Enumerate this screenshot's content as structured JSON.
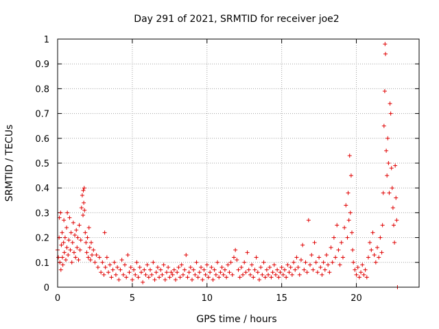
{
  "chart_data": {
    "type": "scatter",
    "title": "Day 291 of 2021, SRMTID for receiver joe2",
    "xlabel": "GPS time / hours",
    "ylabel": "SRMTID / TECUs",
    "xlim": [
      0,
      24.2
    ],
    "ylim": [
      0,
      1
    ],
    "xticks": [
      0,
      5,
      10,
      15,
      20
    ],
    "yticks": [
      0,
      0.1,
      0.2,
      0.3,
      0.4,
      0.5,
      0.6,
      0.7,
      0.8,
      0.9,
      1
    ],
    "xtick_labels": [
      "0",
      "5",
      "10",
      "15",
      "20"
    ],
    "ytick_labels": [
      "0",
      "0.1",
      "0.2",
      "0.3",
      "0.4",
      "0.5",
      "0.6",
      "0.7",
      "0.8",
      "0.9",
      "1"
    ],
    "grid": true,
    "marker": "+",
    "color": "#e00000",
    "series": [
      {
        "name": "SRMTID",
        "points": [
          [
            0.0,
            0.15
          ],
          [
            0.05,
            0.12
          ],
          [
            0.1,
            0.2
          ],
          [
            0.12,
            0.28
          ],
          [
            0.15,
            0.1
          ],
          [
            0.2,
            0.3
          ],
          [
            0.22,
            0.07
          ],
          [
            0.25,
            0.17
          ],
          [
            0.3,
            0.22
          ],
          [
            0.32,
            0.12
          ],
          [
            0.35,
            0.09
          ],
          [
            0.4,
            0.18
          ],
          [
            0.42,
            0.27
          ],
          [
            0.45,
            0.14
          ],
          [
            0.5,
            0.2
          ],
          [
            0.55,
            0.11
          ],
          [
            0.6,
            0.24
          ],
          [
            0.62,
            0.16
          ],
          [
            0.65,
            0.3
          ],
          [
            0.7,
            0.13
          ],
          [
            0.75,
            0.19
          ],
          [
            0.8,
            0.28
          ],
          [
            0.85,
            0.15
          ],
          [
            0.9,
            0.22
          ],
          [
            0.95,
            0.1
          ],
          [
            1.0,
            0.18
          ],
          [
            1.05,
            0.26
          ],
          [
            1.1,
            0.14
          ],
          [
            1.15,
            0.21
          ],
          [
            1.2,
            0.12
          ],
          [
            1.25,
            0.23
          ],
          [
            1.3,
            0.16
          ],
          [
            1.35,
            0.2
          ],
          [
            1.4,
            0.11
          ],
          [
            1.45,
            0.25
          ],
          [
            1.5,
            0.15
          ],
          [
            1.55,
            0.19
          ],
          [
            1.6,
            0.32
          ],
          [
            1.65,
            0.37
          ],
          [
            1.7,
            0.29
          ],
          [
            1.72,
            0.39
          ],
          [
            1.75,
            0.34
          ],
          [
            1.78,
            0.4
          ],
          [
            1.8,
            0.31
          ],
          [
            1.85,
            0.22
          ],
          [
            1.9,
            0.18
          ],
          [
            1.95,
            0.14
          ],
          [
            2.0,
            0.2
          ],
          [
            2.05,
            0.12
          ],
          [
            2.1,
            0.24
          ],
          [
            2.15,
            0.16
          ],
          [
            2.2,
            0.11
          ],
          [
            2.25,
            0.18
          ],
          [
            2.3,
            0.13
          ],
          [
            2.4,
            0.15
          ],
          [
            2.5,
            0.1
          ],
          [
            2.6,
            0.13
          ],
          [
            2.7,
            0.08
          ],
          [
            2.8,
            0.12
          ],
          [
            2.9,
            0.06
          ],
          [
            3.0,
            0.1
          ],
          [
            3.1,
            0.05
          ],
          [
            3.15,
            0.22
          ],
          [
            3.2,
            0.08
          ],
          [
            3.3,
            0.12
          ],
          [
            3.4,
            0.06
          ],
          [
            3.5,
            0.09
          ],
          [
            3.6,
            0.04
          ],
          [
            3.7,
            0.07
          ],
          [
            3.8,
            0.1
          ],
          [
            3.9,
            0.05
          ],
          [
            4.0,
            0.08
          ],
          [
            4.1,
            0.03
          ],
          [
            4.2,
            0.07
          ],
          [
            4.3,
            0.11
          ],
          [
            4.4,
            0.05
          ],
          [
            4.5,
            0.09
          ],
          [
            4.6,
            0.04
          ],
          [
            4.7,
            0.13
          ],
          [
            4.8,
            0.06
          ],
          [
            4.9,
            0.08
          ],
          [
            5.0,
            0.03
          ],
          [
            5.1,
            0.07
          ],
          [
            5.2,
            0.05
          ],
          [
            5.3,
            0.1
          ],
          [
            5.4,
            0.04
          ],
          [
            5.5,
            0.08
          ],
          [
            5.6,
            0.06
          ],
          [
            5.7,
            0.02
          ],
          [
            5.8,
            0.07
          ],
          [
            5.9,
            0.05
          ],
          [
            6.0,
            0.09
          ],
          [
            6.1,
            0.04
          ],
          [
            6.2,
            0.07
          ],
          [
            6.3,
            0.05
          ],
          [
            6.4,
            0.1
          ],
          [
            6.5,
            0.03
          ],
          [
            6.6,
            0.06
          ],
          [
            6.7,
            0.08
          ],
          [
            6.8,
            0.04
          ],
          [
            6.9,
            0.07
          ],
          [
            7.0,
            0.05
          ],
          [
            7.1,
            0.09
          ],
          [
            7.2,
            0.03
          ],
          [
            7.3,
            0.06
          ],
          [
            7.4,
            0.08
          ],
          [
            7.5,
            0.04
          ],
          [
            7.6,
            0.06
          ],
          [
            7.7,
            0.05
          ],
          [
            7.8,
            0.07
          ],
          [
            7.9,
            0.03
          ],
          [
            8.0,
            0.06
          ],
          [
            8.1,
            0.08
          ],
          [
            8.2,
            0.04
          ],
          [
            8.3,
            0.09
          ],
          [
            8.4,
            0.05
          ],
          [
            8.5,
            0.07
          ],
          [
            8.6,
            0.13
          ],
          [
            8.7,
            0.04
          ],
          [
            8.8,
            0.06
          ],
          [
            8.9,
            0.08
          ],
          [
            9.0,
            0.03
          ],
          [
            9.1,
            0.07
          ],
          [
            9.2,
            0.05
          ],
          [
            9.3,
            0.1
          ],
          [
            9.4,
            0.04
          ],
          [
            9.5,
            0.06
          ],
          [
            9.6,
            0.08
          ],
          [
            9.7,
            0.03
          ],
          [
            9.8,
            0.07
          ],
          [
            9.9,
            0.05
          ],
          [
            10.0,
            0.09
          ],
          [
            10.1,
            0.04
          ],
          [
            10.2,
            0.06
          ],
          [
            10.3,
            0.08
          ],
          [
            10.4,
            0.03
          ],
          [
            10.5,
            0.07
          ],
          [
            10.6,
            0.05
          ],
          [
            10.7,
            0.1
          ],
          [
            10.8,
            0.04
          ],
          [
            10.9,
            0.06
          ],
          [
            11.0,
            0.08
          ],
          [
            11.1,
            0.05
          ],
          [
            11.2,
            0.07
          ],
          [
            11.3,
            0.04
          ],
          [
            11.4,
            0.09
          ],
          [
            11.5,
            0.06
          ],
          [
            11.6,
            0.1
          ],
          [
            11.7,
            0.05
          ],
          [
            11.8,
            0.12
          ],
          [
            11.9,
            0.15
          ],
          [
            12.0,
            0.11
          ],
          [
            12.1,
            0.07
          ],
          [
            12.2,
            0.04
          ],
          [
            12.3,
            0.08
          ],
          [
            12.4,
            0.05
          ],
          [
            12.5,
            0.1
          ],
          [
            12.6,
            0.06
          ],
          [
            12.7,
            0.14
          ],
          [
            12.8,
            0.07
          ],
          [
            12.9,
            0.05
          ],
          [
            13.0,
            0.09
          ],
          [
            13.1,
            0.04
          ],
          [
            13.2,
            0.07
          ],
          [
            13.3,
            0.12
          ],
          [
            13.4,
            0.06
          ],
          [
            13.5,
            0.03
          ],
          [
            13.6,
            0.08
          ],
          [
            13.7,
            0.05
          ],
          [
            13.8,
            0.1
          ],
          [
            13.9,
            0.04
          ],
          [
            14.0,
            0.07
          ],
          [
            14.1,
            0.05
          ],
          [
            14.2,
            0.08
          ],
          [
            14.3,
            0.04
          ],
          [
            14.4,
            0.06
          ],
          [
            14.5,
            0.09
          ],
          [
            14.6,
            0.05
          ],
          [
            14.7,
            0.07
          ],
          [
            14.8,
            0.04
          ],
          [
            14.9,
            0.06
          ],
          [
            15.0,
            0.08
          ],
          [
            15.1,
            0.05
          ],
          [
            15.2,
            0.07
          ],
          [
            15.3,
            0.04
          ],
          [
            15.4,
            0.09
          ],
          [
            15.5,
            0.06
          ],
          [
            15.6,
            0.08
          ],
          [
            15.7,
            0.05
          ],
          [
            15.8,
            0.1
          ],
          [
            15.9,
            0.07
          ],
          [
            16.0,
            0.12
          ],
          [
            16.1,
            0.08
          ],
          [
            16.2,
            0.05
          ],
          [
            16.3,
            0.11
          ],
          [
            16.4,
            0.17
          ],
          [
            16.5,
            0.07
          ],
          [
            16.6,
            0.1
          ],
          [
            16.7,
            0.06
          ],
          [
            16.8,
            0.27
          ],
          [
            16.9,
            0.09
          ],
          [
            17.0,
            0.13
          ],
          [
            17.1,
            0.07
          ],
          [
            17.2,
            0.18
          ],
          [
            17.3,
            0.1
          ],
          [
            17.4,
            0.06
          ],
          [
            17.5,
            0.12
          ],
          [
            17.6,
            0.08
          ],
          [
            17.7,
            0.05
          ],
          [
            17.8,
            0.1
          ],
          [
            17.9,
            0.07
          ],
          [
            18.0,
            0.13
          ],
          [
            18.1,
            0.09
          ],
          [
            18.2,
            0.06
          ],
          [
            18.3,
            0.16
          ],
          [
            18.4,
            0.1
          ],
          [
            18.5,
            0.2
          ],
          [
            18.6,
            0.12
          ],
          [
            18.7,
            0.25
          ],
          [
            18.8,
            0.15
          ],
          [
            18.9,
            0.09
          ],
          [
            19.0,
            0.18
          ],
          [
            19.1,
            0.12
          ],
          [
            19.2,
            0.24
          ],
          [
            19.3,
            0.33
          ],
          [
            19.4,
            0.2
          ],
          [
            19.45,
            0.38
          ],
          [
            19.5,
            0.27
          ],
          [
            19.55,
            0.53
          ],
          [
            19.6,
            0.3
          ],
          [
            19.65,
            0.45
          ],
          [
            19.7,
            0.22
          ],
          [
            19.75,
            0.15
          ],
          [
            19.8,
            0.1
          ],
          [
            19.9,
            0.07
          ],
          [
            20.0,
            0.05
          ],
          [
            20.1,
            0.08
          ],
          [
            20.2,
            0.04
          ],
          [
            20.3,
            0.06
          ],
          [
            20.4,
            0.09
          ],
          [
            20.5,
            0.05
          ],
          [
            20.6,
            0.07
          ],
          [
            20.7,
            0.04
          ],
          [
            20.8,
            0.12
          ],
          [
            20.9,
            0.18
          ],
          [
            21.0,
            0.15
          ],
          [
            21.1,
            0.22
          ],
          [
            21.2,
            0.13
          ],
          [
            21.3,
            0.1
          ],
          [
            21.4,
            0.16
          ],
          [
            21.5,
            0.12
          ],
          [
            21.6,
            0.2
          ],
          [
            21.7,
            0.14
          ],
          [
            21.75,
            0.25
          ],
          [
            21.8,
            0.38
          ],
          [
            21.85,
            0.65
          ],
          [
            21.9,
            0.79
          ],
          [
            21.92,
            0.98
          ],
          [
            21.95,
            0.94
          ],
          [
            22.0,
            0.55
          ],
          [
            22.05,
            0.45
          ],
          [
            22.1,
            0.6
          ],
          [
            22.15,
            0.5
          ],
          [
            22.2,
            0.38
          ],
          [
            22.25,
            0.74
          ],
          [
            22.3,
            0.7
          ],
          [
            22.35,
            0.48
          ],
          [
            22.4,
            0.4
          ],
          [
            22.45,
            0.32
          ],
          [
            22.5,
            0.25
          ],
          [
            22.55,
            0.18
          ],
          [
            22.6,
            0.49
          ],
          [
            22.65,
            0.36
          ],
          [
            22.7,
            0.27
          ],
          [
            22.75,
            0.0
          ]
        ]
      }
    ]
  }
}
